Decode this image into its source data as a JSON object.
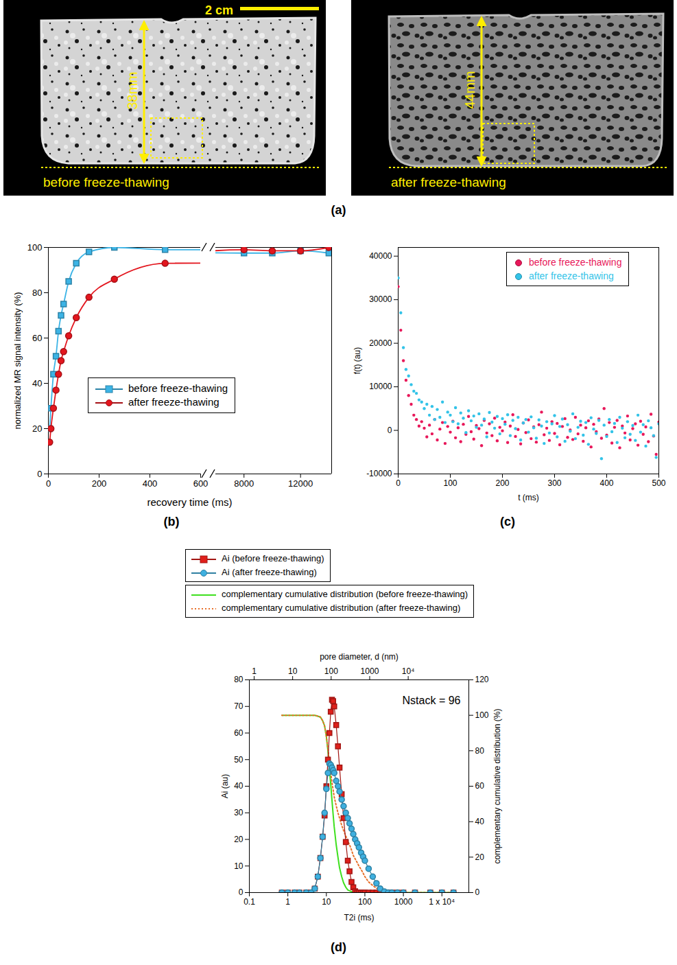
{
  "chart_data": [
    {
      "type": "image",
      "title": "(a)",
      "scale_bar": "2 cm",
      "panels": [
        {
          "caption": "before freeze-thawing",
          "height_label": "38mm"
        },
        {
          "caption": "after freeze-thawing",
          "height_label": "44mm"
        }
      ]
    },
    {
      "type": "line",
      "title": "(b)",
      "x_label": "recovery time (ms)",
      "y_label": "normalized MR signal intensity (%)",
      "x": [
        5,
        10,
        20,
        30,
        40,
        50,
        60,
        80,
        110,
        160,
        260,
        460,
        8000,
        10000,
        12000,
        14000
      ],
      "xlim": [
        [
          0,
          600
        ],
        [
          6000,
          14200
        ]
      ],
      "xticks": [
        [
          0,
          200,
          400,
          600
        ],
        [
          8000,
          12000
        ]
      ],
      "ylim": [
        0,
        100
      ],
      "yticks": [
        0,
        20,
        40,
        60,
        80,
        100
      ],
      "grid": false,
      "legend": "lower right",
      "series": [
        {
          "name": "before freeze-thawing",
          "color": "#3cb4e6",
          "marker": "square",
          "line_style": "solid",
          "values": [
            20,
            29,
            44,
            52,
            63,
            70,
            75,
            85,
            93,
            98,
            100,
            99,
            97.5,
            97.5,
            98.5,
            97.5
          ]
        },
        {
          "name": "after freeze-thawing",
          "color": "#e3161e",
          "marker": "circle",
          "line_style": "solid",
          "values": [
            14,
            20,
            29,
            37,
            44,
            50,
            54,
            61,
            69,
            78,
            86,
            93,
            99,
            98.5,
            98.5,
            100
          ]
        }
      ]
    },
    {
      "type": "scatter",
      "title": "(c)",
      "x_label": "t (ms)",
      "y_label": "f(t) (au)",
      "x": [
        0,
        5,
        10,
        15,
        20,
        25,
        30,
        35,
        40,
        45,
        50,
        55,
        60,
        65,
        70,
        75,
        80,
        85,
        90,
        95,
        100,
        105,
        110,
        115,
        120,
        125,
        130,
        135,
        140,
        145,
        150,
        155,
        160,
        165,
        170,
        175,
        180,
        185,
        190,
        195,
        200,
        205,
        210,
        215,
        220,
        225,
        230,
        235,
        240,
        245,
        250,
        255,
        260,
        265,
        270,
        275,
        280,
        285,
        290,
        295,
        300,
        305,
        310,
        315,
        320,
        325,
        330,
        335,
        340,
        345,
        350,
        355,
        360,
        365,
        370,
        375,
        380,
        385,
        390,
        395,
        400,
        405,
        410,
        415,
        420,
        425,
        430,
        435,
        440,
        445,
        450,
        455,
        460,
        465,
        470,
        475,
        480,
        485,
        490,
        495,
        500
      ],
      "xlim": [
        0,
        500
      ],
      "xticks": [
        0,
        100,
        200,
        300,
        400,
        500
      ],
      "ylim": [
        -10000,
        42000
      ],
      "yticks": [
        -10000,
        0,
        10000,
        20000,
        30000,
        40000
      ],
      "grid": false,
      "legend": "upper right",
      "series": [
        {
          "name": "before freeze-thawing",
          "color": "#e8185a",
          "marker": "circle",
          "values": [
            33000,
            23000,
            16000,
            11500,
            8000,
            6000,
            3500,
            2500,
            1000,
            2000,
            500,
            -1500,
            1200,
            -800,
            2500,
            -2200,
            300,
            1800,
            -3000,
            900,
            -400,
            2100,
            -1700,
            600,
            -2600,
            1400,
            -900,
            3200,
            -300,
            -2000,
            1100,
            400,
            -3500,
            2300,
            -600,
            1500,
            -1200,
            2800,
            -2400,
            700,
            -100,
            1900,
            -2800,
            1000,
            3600,
            -1400,
            200,
            -3100,
            1700,
            -500,
            2400,
            -1900,
            800,
            -2700,
            1300,
            4200,
            -1000,
            500,
            -2300,
            2000,
            -700,
            1600,
            -3300,
            900,
            2700,
            -1600,
            100,
            -2100,
            3000,
            -800,
            1200,
            -2500,
            600,
            2200,
            -3800,
            1400,
            -300,
            2600,
            -1800,
            5000,
            -1100,
            1800,
            -2900,
            700,
            2300,
            -4000,
            1000,
            -600,
            3300,
            -2200,
            400,
            1500,
            -3400,
            2100,
            -900,
            800,
            -2600,
            3700,
            -1300,
            -5500,
            1900
          ]
        },
        {
          "name": "after freeze-thawing",
          "color": "#33c3e8",
          "marker": "circle",
          "values": [
            35000,
            27000,
            19000,
            14000,
            12500,
            10500,
            9000,
            8500,
            7000,
            6500,
            5000,
            6000,
            3500,
            5500,
            2500,
            4800,
            3000,
            6500,
            1800,
            4200,
            3500,
            2000,
            5200,
            1500,
            4000,
            2800,
            -500,
            4500,
            2200,
            3300,
            700,
            3800,
            1200,
            2600,
            -1500,
            4100,
            1900,
            500,
            3200,
            -800,
            2700,
            1400,
            3600,
            -1200,
            2300,
            400,
            3000,
            -2200,
            1700,
            2500,
            -400,
            3100,
            600,
            -1800,
            2400,
            1000,
            -3000,
            2000,
            -600,
            1500,
            3400,
            -1500,
            900,
            2600,
            -2500,
            1300,
            -200,
            3800,
            -1900,
            700,
            2100,
            -1100,
            1800,
            -3200,
            2900,
            300,
            -700,
            2300,
            -6500,
            1200,
            -1400,
            2500,
            -300,
            1600,
            -2800,
            3000,
            500,
            -1700,
            2000,
            -900,
            1100,
            -2300,
            3500,
            -400,
            1300,
            -3600,
            2200,
            600,
            -1200,
            -6200,
            1500
          ]
        }
      ]
    },
    {
      "type": "line",
      "title": "(d)",
      "x_label": "T2i (ms)",
      "y_label": "Ai (au)",
      "y2_label": "complementary cumulative distribution (%)",
      "x2_label": "pore diameter, d (nm)",
      "annotation": "Nstack = 96",
      "log": "x",
      "grid": false,
      "legend": "top",
      "x": [
        0.7,
        1,
        1.5,
        2,
        3,
        4,
        5,
        6,
        7,
        8,
        9,
        10,
        11,
        12,
        13,
        14,
        15,
        16,
        18,
        20,
        22,
        25,
        28,
        32,
        36,
        40,
        45,
        50,
        56,
        63,
        70,
        80,
        90,
        100,
        125,
        160,
        200,
        250,
        320,
        400,
        500,
        700,
        1000,
        2000,
        5000,
        10000,
        20000
      ],
      "xlim": [
        0.1,
        50000
      ],
      "xticks": [
        0.1,
        1,
        10,
        100,
        1000,
        {
          "value": 10000,
          "label": "1 x 10⁴"
        }
      ],
      "x2lim": [
        0.75,
        375000
      ],
      "x2ticks": [
        1,
        10,
        100,
        1000,
        {
          "value": 10000,
          "label": "10⁴"
        }
      ],
      "ylim": [
        0,
        80
      ],
      "yticks": [
        0,
        10,
        20,
        30,
        40,
        50,
        60,
        70,
        80
      ],
      "y2lim": [
        0,
        120
      ],
      "y2ticks": [
        0,
        20,
        40,
        60,
        80,
        100,
        120
      ],
      "series": [
        {
          "name": "Ai (before freeze-thawing)",
          "color": "#e0201b",
          "marker": "square",
          "line_style": "solid",
          "values": [
            0,
            0,
            0,
            0,
            0,
            0,
            1.5,
            6,
            13,
            21,
            29,
            40,
            50,
            60,
            68,
            72.5,
            72,
            70,
            63,
            55,
            47,
            37,
            28,
            19,
            12,
            8,
            4,
            2,
            0.5,
            0,
            0,
            0,
            0,
            0,
            0,
            0,
            0,
            0,
            0,
            0,
            0,
            0,
            0,
            0,
            0,
            0,
            0
          ]
        },
        {
          "name": "Ai (after freeze-thawing)",
          "color": "#3fb0e0",
          "marker": "circle",
          "line_style": "solid",
          "values": [
            0,
            0,
            0,
            0,
            0,
            0,
            1.5,
            6,
            13,
            21,
            30,
            39,
            45,
            48.5,
            48,
            47,
            46,
            45,
            42,
            40,
            38,
            35,
            32.5,
            30,
            28,
            26,
            24,
            22,
            20,
            18.5,
            17,
            15,
            13.5,
            12,
            9,
            6,
            3.5,
            1.5,
            0.4,
            0,
            0,
            0,
            0,
            0,
            0,
            0,
            0
          ]
        },
        {
          "name": "complementary cumulative distribution (before freeze-thawing)",
          "color": "#3ee01e",
          "line_style": "solid",
          "axis": "y2",
          "values": [
            100,
            100,
            100,
            100,
            100,
            100,
            100,
            99.5,
            99,
            97,
            94,
            88,
            80,
            70,
            61,
            52,
            44,
            37,
            27,
            20,
            14,
            9,
            5.5,
            3,
            1.5,
            1,
            0.5,
            0,
            0,
            0,
            0,
            0,
            0,
            0,
            0,
            0,
            0,
            0,
            0,
            0,
            0,
            0,
            0,
            0,
            0,
            0,
            0
          ]
        },
        {
          "name": "complementary cumulative distribution (after freeze-thawing)",
          "color": "#e8702a",
          "line_style": "dotted",
          "axis": "y2",
          "values": [
            100,
            100,
            100,
            100,
            100,
            100,
            100,
            99.5,
            99,
            97,
            94,
            88,
            81,
            74,
            68,
            62,
            58,
            54,
            49,
            45,
            42,
            38,
            35,
            32,
            29,
            27,
            24,
            21,
            19,
            17,
            15,
            13,
            11,
            9,
            6,
            4,
            2.5,
            1,
            0.3,
            0,
            0,
            0,
            0,
            0,
            0,
            0,
            0
          ]
        }
      ]
    }
  ]
}
